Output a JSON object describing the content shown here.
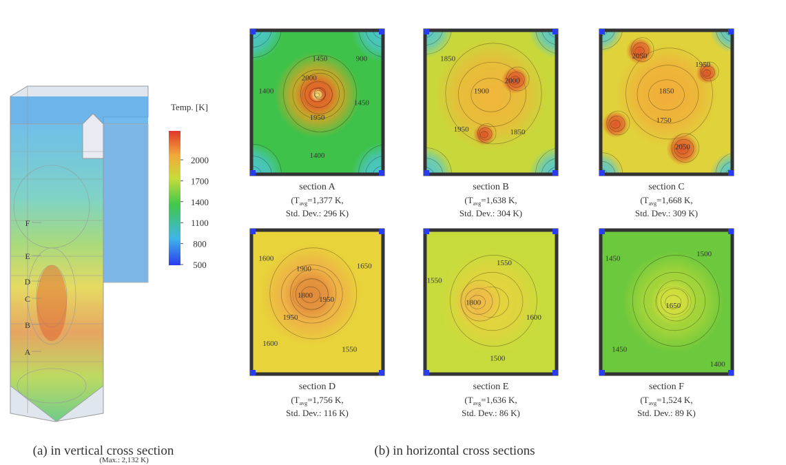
{
  "panel_a": {
    "colorbar": {
      "title": "Temp. [K]",
      "ticks": [
        2000,
        1700,
        1400,
        1100,
        800,
        500
      ]
    },
    "section_marks": [
      "F",
      "E",
      "D",
      "C",
      "B",
      "A"
    ],
    "caption": "(a) in vertical cross section",
    "max": "(Max.: 2,132 K)"
  },
  "panel_b": {
    "caption": "(b) in horizontal cross sections",
    "avg_open": "(",
    "avg_symbol": "T",
    "avg_subscript": "avg",
    "sections": [
      {
        "name": "section A",
        "avg": "=1,377 K,",
        "std": "Std. Dev.: 296 K)",
        "contours": [
          1450,
          900,
          1400,
          2000,
          1450,
          1950,
          1400
        ]
      },
      {
        "name": "section B",
        "avg": "=1,638 K,",
        "std": "Std. Dev.: 304 K)",
        "contours": [
          1850,
          1900,
          2000,
          1950,
          1850
        ]
      },
      {
        "name": "section C",
        "avg": "=1,668 K,",
        "std": "Std. Dev.: 309 K)",
        "contours": [
          2050,
          1950,
          1850,
          1750,
          2050
        ]
      },
      {
        "name": "section D",
        "avg": "=1,756 K,",
        "std": "Std. Dev.: 116 K)",
        "contours": [
          1600,
          1900,
          1650,
          1800,
          1950,
          1950,
          1600,
          1550
        ]
      },
      {
        "name": "section E",
        "avg": "=1,636 K,",
        "std": "Std. Dev.: 86 K)",
        "contours": [
          1550,
          1550,
          1800,
          1600,
          1500
        ]
      },
      {
        "name": "section F",
        "avg": "=1,524 K,",
        "std": "Std. Dev.: 89 K)",
        "contours": [
          1450,
          1500,
          1650,
          1450,
          1400
        ]
      }
    ]
  }
}
